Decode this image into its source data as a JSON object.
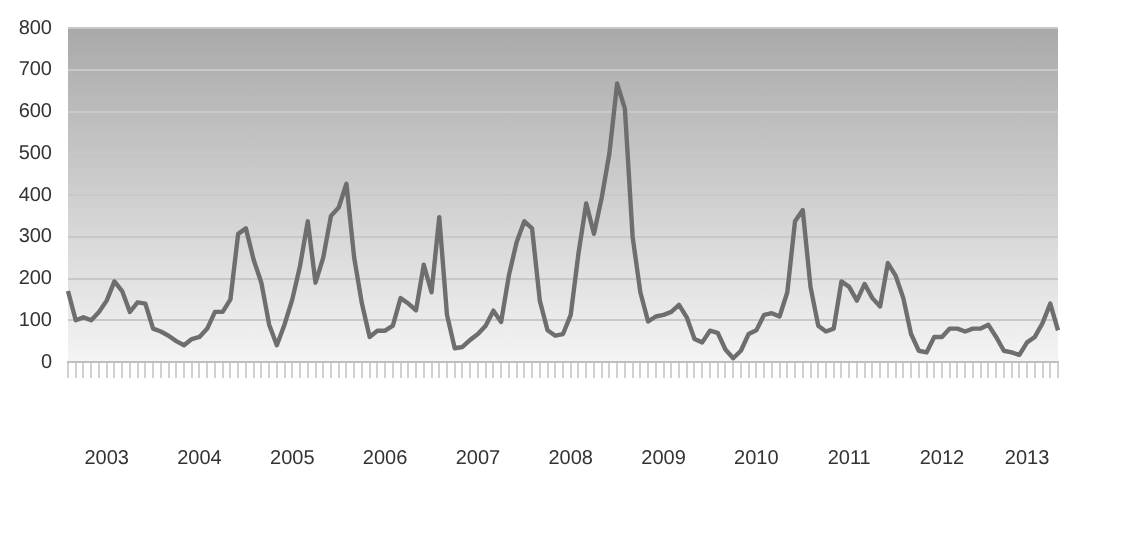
{
  "chart_data": {
    "type": "line",
    "categories": [
      null,
      null,
      null,
      null,
      null,
      "2003",
      null,
      null,
      null,
      null,
      null,
      null,
      null,
      null,
      null,
      null,
      null,
      "2004",
      null,
      null,
      null,
      null,
      null,
      null,
      null,
      null,
      null,
      null,
      null,
      "2005",
      null,
      null,
      null,
      null,
      null,
      null,
      null,
      null,
      null,
      null,
      null,
      "2006",
      null,
      null,
      null,
      null,
      null,
      null,
      null,
      null,
      null,
      null,
      null,
      "2007",
      null,
      null,
      null,
      null,
      null,
      null,
      null,
      null,
      null,
      null,
      null,
      "2008",
      null,
      null,
      null,
      null,
      null,
      null,
      null,
      null,
      null,
      null,
      null,
      "2009",
      null,
      null,
      null,
      null,
      null,
      null,
      null,
      null,
      null,
      null,
      null,
      "2010",
      null,
      null,
      null,
      null,
      null,
      null,
      null,
      null,
      null,
      null,
      null,
      "2011",
      null,
      null,
      null,
      null,
      null,
      null,
      null,
      null,
      null,
      null,
      null,
      "2012",
      null,
      null,
      null,
      null,
      null,
      null,
      null,
      null,
      null,
      null,
      "2013",
      null,
      null,
      null,
      null
    ],
    "series": [
      {
        "color": "#6e6e6e",
        "values": [
          170,
          100,
          107,
          100,
          120,
          147,
          193,
          170,
          120,
          143,
          140,
          80,
          73,
          63,
          50,
          40,
          55,
          60,
          80,
          120,
          120,
          150,
          307,
          320,
          245,
          190,
          90,
          40,
          90,
          150,
          230,
          337,
          190,
          250,
          350,
          370,
          427,
          250,
          140,
          60,
          75,
          75,
          87,
          153,
          140,
          124,
          233,
          167,
          347,
          113,
          33,
          36,
          53,
          67,
          87,
          123,
          96,
          207,
          287,
          337,
          320,
          147,
          76,
          63,
          67,
          113,
          260,
          380,
          307,
          393,
          500,
          667,
          607,
          300,
          167,
          97,
          109,
          113,
          120,
          137,
          107,
          55,
          47,
          75,
          70,
          30,
          9,
          27,
          67,
          76,
          113,
          117,
          109,
          167,
          337,
          364,
          180,
          87,
          73,
          80,
          193,
          180,
          147,
          187,
          153,
          133,
          237,
          207,
          153,
          67,
          27,
          23,
          60,
          60,
          80,
          80,
          73,
          80,
          80,
          89,
          60,
          27,
          23,
          17,
          47,
          60,
          93,
          140,
          76
        ]
      }
    ],
    "ylim": [
      0,
      800
    ],
    "yticks": [
      0,
      100,
      200,
      300,
      400,
      500,
      600,
      700,
      800
    ],
    "grid": "y",
    "legend": false,
    "marker": "none",
    "line_style": "solid"
  }
}
